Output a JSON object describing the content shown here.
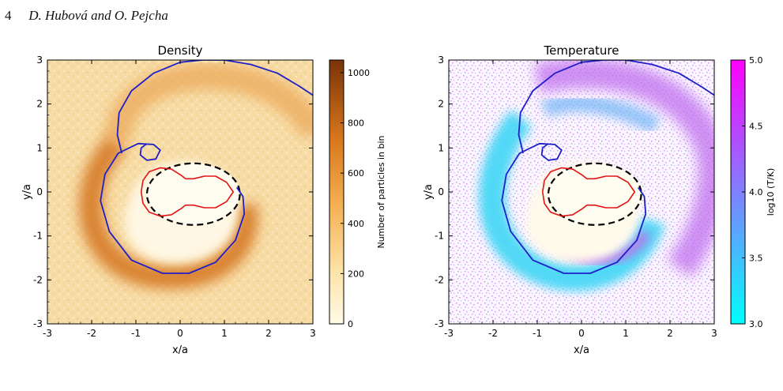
{
  "header": {
    "page_number": "4",
    "authors": "D. Hubová and O. Pejcha"
  },
  "colors": {
    "spiral_blue": "#1f1fc8",
    "roche_red": "#e01414",
    "ellipse_black": "#000000",
    "density_low": "#fff8dc",
    "density_mid": "#f0a040",
    "density_high": "#8b3a08",
    "temp_low": "#00ffff",
    "temp_high": "#ff00ff"
  },
  "chart_data": [
    {
      "type": "heatmap",
      "title": "Density",
      "xlabel": "x/a",
      "ylabel": "y/a",
      "xlim": [
        -3,
        3
      ],
      "ylim": [
        -3,
        3
      ],
      "x_ticks": [
        -3,
        -2,
        -1,
        0,
        1,
        2,
        3
      ],
      "y_ticks": [
        -3,
        -2,
        -1,
        0,
        1,
        2,
        3
      ],
      "x_tick_labels": [
        "-3",
        "-2",
        "-1",
        "0",
        "1",
        "2",
        "3"
      ],
      "y_tick_labels": [
        "-3",
        "-2",
        "-1",
        "0",
        "1",
        "2",
        "3"
      ],
      "colorbar": {
        "label": "Number of particles in bin",
        "range": [
          0,
          1050
        ],
        "ticks": [
          0,
          200,
          400,
          600,
          800,
          1000
        ],
        "tick_labels": [
          "0",
          "200",
          "400",
          "600",
          "800",
          "1000"
        ]
      }
    },
    {
      "type": "scatter",
      "title": "Temperature",
      "xlabel": "x/a",
      "ylabel": "y/a",
      "xlim": [
        -3,
        3
      ],
      "ylim": [
        -3,
        3
      ],
      "x_ticks": [
        -3,
        -2,
        -1,
        0,
        1,
        2,
        3
      ],
      "y_ticks": [
        -3,
        -2,
        -1,
        0,
        1,
        2,
        3
      ],
      "x_tick_labels": [
        "-3",
        "-2",
        "-1",
        "0",
        "1",
        "2",
        "3"
      ],
      "y_tick_labels": [
        "-3",
        "-2",
        "-1",
        "0",
        "1",
        "2",
        "3"
      ],
      "colorbar": {
        "label": "log10 (T/K)",
        "range": [
          3.0,
          5.0
        ],
        "ticks": [
          3.0,
          3.5,
          4.0,
          4.5,
          5.0
        ],
        "tick_labels": [
          "3.0",
          "3.5",
          "4.0",
          "4.5",
          "5.0"
        ]
      }
    }
  ],
  "overlays": {
    "ellipse": {
      "center": [
        0.3,
        -0.05
      ],
      "semi_axes": [
        1.05,
        0.7
      ]
    },
    "roche_lobe": [
      [
        -0.88,
        0.0
      ],
      [
        -0.84,
        0.26
      ],
      [
        -0.7,
        0.46
      ],
      [
        -0.45,
        0.55
      ],
      [
        -0.2,
        0.52
      ],
      [
        0.02,
        0.38
      ],
      [
        0.12,
        0.3
      ],
      [
        0.3,
        0.3
      ],
      [
        0.55,
        0.36
      ],
      [
        0.8,
        0.36
      ],
      [
        1.05,
        0.22
      ],
      [
        1.2,
        0.0
      ],
      [
        1.05,
        -0.22
      ],
      [
        0.8,
        -0.36
      ],
      [
        0.55,
        -0.36
      ],
      [
        0.3,
        -0.3
      ],
      [
        0.12,
        -0.3
      ],
      [
        0.02,
        -0.38
      ],
      [
        -0.2,
        -0.52
      ],
      [
        -0.45,
        -0.55
      ],
      [
        -0.7,
        -0.46
      ],
      [
        -0.84,
        -0.26
      ],
      [
        -0.88,
        0.0
      ]
    ],
    "spiral": [
      [
        -0.75,
        1.1
      ],
      [
        -0.88,
        1.0
      ],
      [
        -0.9,
        0.84
      ],
      [
        -0.75,
        0.72
      ],
      [
        -0.55,
        0.75
      ],
      [
        -0.45,
        0.95
      ],
      [
        -0.6,
        1.08
      ],
      [
        -0.95,
        1.1
      ],
      [
        -1.4,
        0.88
      ],
      [
        -1.7,
        0.4
      ],
      [
        -1.8,
        -0.2
      ],
      [
        -1.6,
        -0.9
      ],
      [
        -1.1,
        -1.55
      ],
      [
        -0.4,
        -1.85
      ],
      [
        0.2,
        -1.85
      ],
      [
        0.8,
        -1.6
      ],
      [
        1.25,
        -1.1
      ],
      [
        1.45,
        -0.5
      ],
      [
        1.42,
        -0.1
      ],
      [
        1.28,
        0.1
      ]
    ],
    "spiral_outer": [
      [
        -1.32,
        0.88
      ],
      [
        -1.42,
        1.3
      ],
      [
        -1.38,
        1.8
      ],
      [
        -1.1,
        2.3
      ],
      [
        -0.6,
        2.7
      ],
      [
        0.0,
        2.95
      ],
      [
        0.5,
        3.0
      ],
      [
        1.0,
        3.0
      ],
      [
        1.6,
        2.9
      ],
      [
        2.2,
        2.7
      ],
      [
        2.7,
        2.4
      ],
      [
        3.0,
        2.2
      ]
    ]
  },
  "caption_text": ""
}
